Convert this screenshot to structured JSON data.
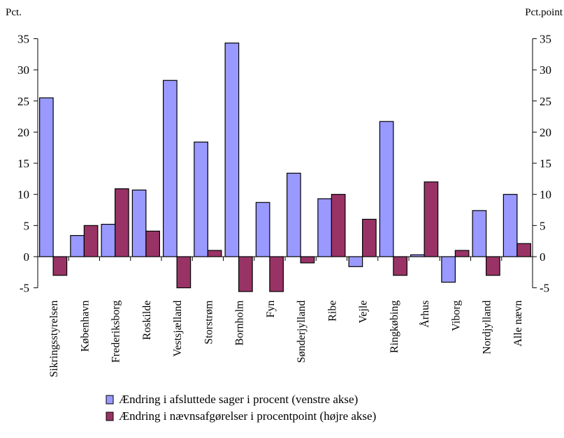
{
  "chart_data": {
    "type": "bar",
    "left_unit": "Pct.",
    "right_unit": "Pct.point",
    "ylim": [
      -5,
      35
    ],
    "yticks": [
      -5,
      0,
      5,
      10,
      15,
      20,
      25,
      30,
      35
    ],
    "categories": [
      "Sikringsstyrelsen",
      "København",
      "Frederiksborg",
      "Roskilde",
      "Vestsjælland",
      "Storstrøm",
      "Bornholm",
      "Fyn",
      "Sønderjylland",
      "Ribe",
      "Vejle",
      "Ringkøbing",
      "Århus",
      "Viborg",
      "Nordjylland",
      "Alle nævn"
    ],
    "series": [
      {
        "name": "Ændring i afsluttede sager i procent (venstre akse)",
        "color": "#9999ff",
        "axis": "left",
        "values": [
          25.5,
          3.4,
          5.2,
          10.7,
          28.3,
          18.4,
          34.3,
          8.7,
          13.4,
          9.3,
          -1.6,
          21.7,
          0.3,
          -4.1,
          7.4,
          10.0
        ]
      },
      {
        "name": "Ændring i nævnsafgørelser i procentpoint (højre akse)",
        "color": "#993366",
        "axis": "right",
        "values": [
          -3.0,
          5.0,
          10.9,
          4.1,
          -5.0,
          1.0,
          -5.6,
          -5.6,
          -1.0,
          10.0,
          6.0,
          -3.0,
          12.0,
          1.0,
          -3.0,
          2.1
        ]
      }
    ],
    "grid": false,
    "legend_position": "bottom"
  }
}
